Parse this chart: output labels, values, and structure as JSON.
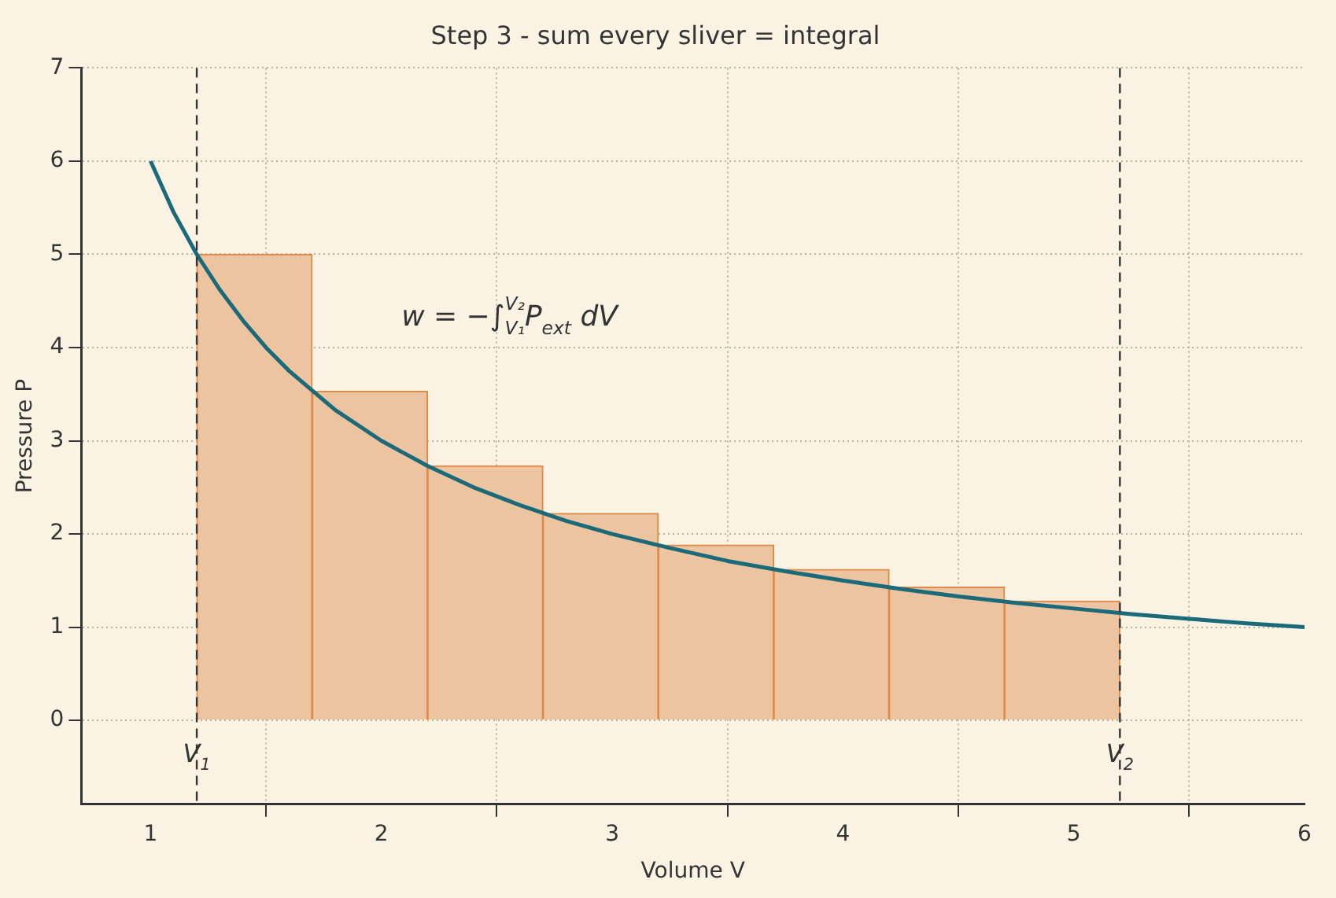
{
  "chart_data": {
    "type": "histogram",
    "title": "Step 3 - sum every sliver = integral",
    "xlabel": "Volume V",
    "ylabel": "Pressure P",
    "bins": [
      1.2,
      1.7,
      2.2,
      2.7,
      3.2,
      3.7,
      4.2,
      4.7,
      5.2
    ],
    "values": [
      5,
      3.53,
      2.73,
      2.22,
      1.88,
      1.62,
      1.43,
      1.28
    ],
    "color": "#edc4a0",
    "series": [
      {
        "type": "line",
        "color": "#1b6a7a",
        "x": [
          1,
          1.1,
          1.2,
          1.3,
          1.4,
          1.5,
          1.6,
          1.8,
          2,
          2.2,
          2.4,
          2.6,
          2.8,
          3,
          3.25,
          3.5,
          3.75,
          4,
          4.25,
          4.5,
          4.75,
          5,
          5.25,
          5.5,
          5.75,
          6
        ],
        "values": [
          6,
          5.45,
          5,
          4.62,
          4.29,
          4,
          3.75,
          3.33,
          3,
          2.73,
          2.5,
          2.31,
          2.14,
          2,
          1.85,
          1.71,
          1.6,
          1.5,
          1.41,
          1.33,
          1.26,
          1.2,
          1.14,
          1.09,
          1.04,
          1
        ]
      }
    ],
    "ref_lines": [
      {
        "axis": "x",
        "value": 1.2,
        "label": "V$_{1}$",
        "color": "#333333",
        "line_style": "dashed"
      },
      {
        "axis": "x",
        "value": 5.2,
        "label": "V$_{2}$",
        "color": "#333333",
        "line_style": "dashed"
      }
    ],
    "annotations": [
      "w = −∫$_{V₁}$$^{V₂}$P$_{ext}$ dV"
    ],
    "xlim": [
      0.7,
      6
    ],
    "ylim": [
      -0.9,
      7
    ],
    "xticks": [
      1,
      2,
      3,
      4,
      5,
      6
    ],
    "yticks": [
      0,
      1,
      2,
      3,
      4,
      5,
      6,
      7
    ],
    "grid": true,
    "legend": false,
    "marker": "none",
    "line_style": "solid"
  }
}
